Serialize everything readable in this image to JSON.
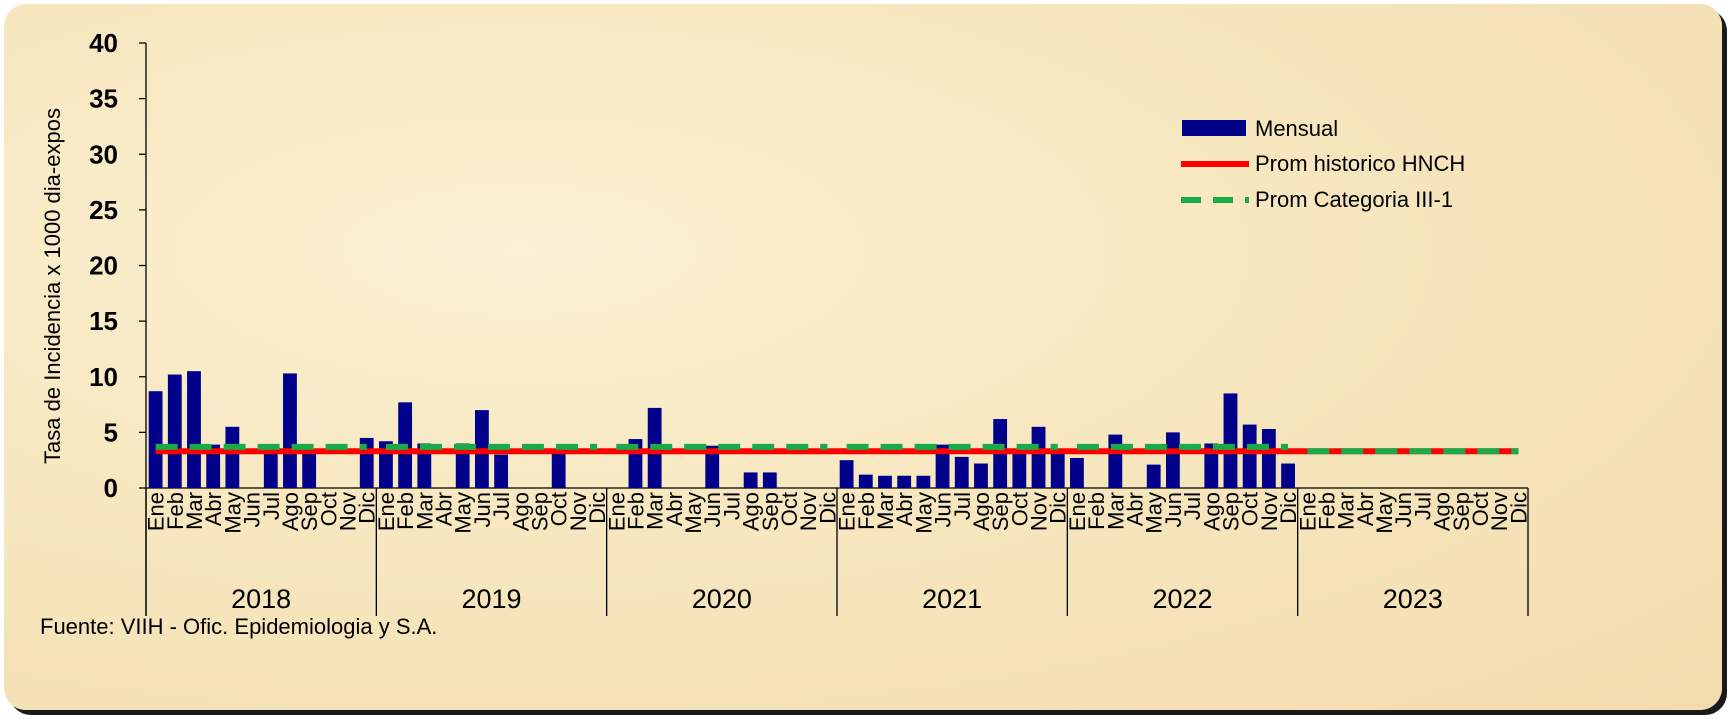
{
  "source_note": "Fuente: VIIH - Ofic. Epidemiologia y S.A.",
  "chart_data": {
    "type": "bar",
    "title": "",
    "xlabel": "",
    "ylabel": "Tasa de Incidencia x 1000 dia-expos",
    "ylim": [
      0,
      40
    ],
    "yticks": [
      "0",
      "5",
      "10",
      "15",
      "20",
      "25",
      "30",
      "35",
      "40"
    ],
    "months": [
      "Ene",
      "Feb",
      "Mar",
      "Abr",
      "May",
      "Jun",
      "Jul",
      "Ago",
      "Sep",
      "Oct",
      "Nov",
      "Dic"
    ],
    "years": [
      "2018",
      "2019",
      "2020",
      "2021",
      "2022",
      "2023"
    ],
    "legend_position": "top-right",
    "series": [
      {
        "name": "Mensual",
        "kind": "bar",
        "color": "#00008b",
        "values": [
          8.7,
          10.2,
          10.5,
          3.9,
          5.5,
          0,
          3.8,
          10.3,
          3.3,
          0,
          0,
          4.5,
          4.2,
          7.7,
          4.0,
          0,
          4.0,
          7.0,
          3.0,
          0,
          0,
          3.3,
          0,
          0,
          0,
          4.4,
          7.2,
          0,
          0,
          3.8,
          0,
          1.4,
          1.4,
          0,
          0,
          0,
          2.5,
          1.2,
          1.1,
          1.1,
          1.1,
          3.9,
          2.8,
          2.2,
          6.2,
          3.5,
          5.5,
          3.4,
          2.7,
          0,
          4.8,
          0,
          2.1,
          5.0,
          0,
          4.0,
          8.5,
          5.7,
          5.3,
          2.2,
          0,
          0,
          0,
          0,
          0,
          0,
          0,
          0,
          0,
          0,
          0,
          0
        ]
      },
      {
        "name": "Prom historico HNCH",
        "kind": "line",
        "color": "#ff0000",
        "value": 3.3
      },
      {
        "name": "Prom Categoria III-1",
        "kind": "dashed-line",
        "color": "#1aaa4a",
        "values": [
          3.7,
          3.7,
          3.7,
          3.7,
          3.7,
          3.3
        ]
      }
    ]
  }
}
